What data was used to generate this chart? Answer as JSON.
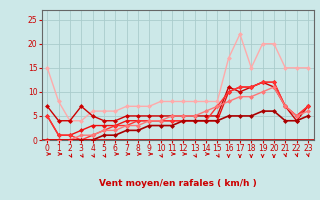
{
  "title": "",
  "xlabel": "Vent moyen/en rafales ( km/h )",
  "bg_color": "#cce8e8",
  "grid_color": "#aacccc",
  "xlim": [
    -0.5,
    23.5
  ],
  "ylim": [
    0,
    27
  ],
  "yticks": [
    0,
    5,
    10,
    15,
    20,
    25
  ],
  "xticks": [
    0,
    1,
    2,
    3,
    4,
    5,
    6,
    7,
    8,
    9,
    10,
    11,
    12,
    13,
    14,
    15,
    16,
    17,
    18,
    19,
    20,
    21,
    22,
    23
  ],
  "series": [
    {
      "x": [
        0,
        1,
        2,
        3,
        4,
        5,
        6,
        7,
        8,
        9,
        10,
        11,
        12,
        13,
        14,
        15,
        16,
        17,
        18,
        19,
        20,
        21,
        22,
        23
      ],
      "y": [
        15,
        8,
        4,
        4,
        6,
        6,
        6,
        7,
        7,
        7,
        8,
        8,
        8,
        8,
        8,
        8,
        17,
        22,
        15,
        20,
        20,
        15,
        15,
        15
      ],
      "color": "#ffaaaa",
      "lw": 1.0,
      "ms": 2.5
    },
    {
      "x": [
        0,
        1,
        2,
        3,
        4,
        5,
        6,
        7,
        8,
        9,
        10,
        11,
        12,
        13,
        14,
        15,
        16,
        17,
        18,
        19,
        20,
        21,
        22,
        23
      ],
      "y": [
        7,
        4,
        4,
        7,
        5,
        4,
        4,
        5,
        5,
        5,
        5,
        5,
        5,
        5,
        5,
        5,
        11,
        10,
        11,
        12,
        11,
        7,
        4,
        7
      ],
      "color": "#cc0000",
      "lw": 1.0,
      "ms": 2.5
    },
    {
      "x": [
        0,
        1,
        2,
        3,
        4,
        5,
        6,
        7,
        8,
        9,
        10,
        11,
        12,
        13,
        14,
        15,
        16,
        17,
        18,
        19,
        20,
        21,
        22,
        23
      ],
      "y": [
        5,
        1,
        1,
        2,
        3,
        3,
        3,
        4,
        4,
        4,
        4,
        4,
        4,
        4,
        4,
        4,
        10,
        11,
        11,
        12,
        12,
        7,
        5,
        7
      ],
      "color": "#ee1111",
      "lw": 1.0,
      "ms": 2.5
    },
    {
      "x": [
        0,
        1,
        2,
        3,
        4,
        5,
        6,
        7,
        8,
        9,
        10,
        11,
        12,
        13,
        14,
        15,
        16,
        17,
        18,
        19,
        20,
        21,
        22,
        23
      ],
      "y": [
        5,
        1,
        1,
        0,
        1,
        2,
        3,
        3,
        4,
        4,
        4,
        4,
        4,
        4,
        4,
        7,
        10,
        11,
        11,
        12,
        12,
        7,
        5,
        7
      ],
      "color": "#ff3333",
      "lw": 1.0,
      "ms": 2.5
    },
    {
      "x": [
        0,
        1,
        2,
        3,
        4,
        5,
        6,
        7,
        8,
        9,
        10,
        11,
        12,
        13,
        14,
        15,
        16,
        17,
        18,
        19,
        20,
        21,
        22,
        23
      ],
      "y": [
        0,
        0,
        0,
        0,
        0,
        1,
        1,
        2,
        2,
        3,
        3,
        3,
        4,
        4,
        4,
        4,
        5,
        5,
        5,
        6,
        6,
        4,
        4,
        5
      ],
      "color": "#aa0000",
      "lw": 1.2,
      "ms": 2.5
    },
    {
      "x": [
        0,
        1,
        2,
        3,
        4,
        5,
        6,
        7,
        8,
        9,
        10,
        11,
        12,
        13,
        14,
        15,
        16,
        17,
        18,
        19,
        20,
        21,
        22,
        23
      ],
      "y": [
        0,
        0,
        0,
        1,
        1,
        2,
        2,
        3,
        3,
        4,
        4,
        5,
        5,
        5,
        6,
        7,
        8,
        9,
        9,
        10,
        11,
        7,
        5,
        6
      ],
      "color": "#ff7777",
      "lw": 1.0,
      "ms": 2.5
    }
  ],
  "arrow_color": "#cc0000",
  "spine_color": "#666666",
  "xlabel_color": "#cc0000",
  "xlabel_fontsize": 6.5,
  "tick_color": "#cc0000",
  "tick_fontsize": 5.5
}
